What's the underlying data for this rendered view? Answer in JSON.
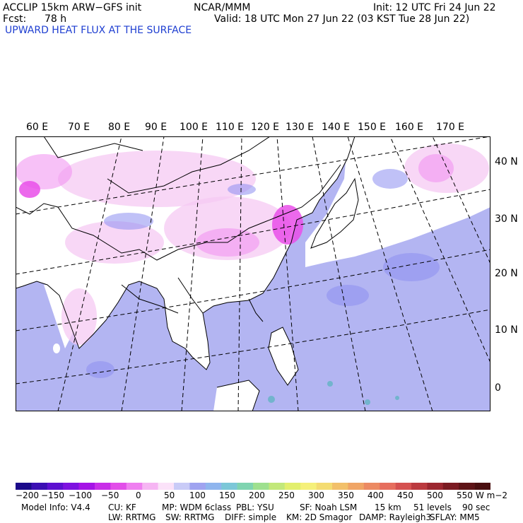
{
  "header": {
    "model": "ACCLIP 15km ARW−GFS init",
    "fcst_label": "Fcst:",
    "fcst_value": "78 h",
    "center": "NCAR/MMM",
    "init": "Init: 12 UTC Fri 24 Jun 22",
    "valid": "Valid: 18 UTC Mon 27 Jun 22 (03 KST Tue 28 Jun 22)",
    "field_title": "UPWARD HEAT FLUX AT THE SURFACE"
  },
  "map": {
    "lon_labels": [
      "60 E",
      "70 E",
      "80 E",
      "90 E",
      "100 E",
      "110 E",
      "120 E",
      "130 E",
      "140 E",
      "150 E",
      "160 E",
      "170 E"
    ],
    "lat_labels": [
      "40 N",
      "30 N",
      "20 N",
      "10 N",
      "0"
    ],
    "colors": {
      "ocean": "#b3b5f2",
      "land": "#ffffff",
      "pink_light": "#f6c9f3",
      "pink_mid": "#f08ef0",
      "magenta": "#e94fe9",
      "blue_mid": "#8c8ef0",
      "teal": "#6ab4c9",
      "coast": "#000000"
    }
  },
  "colorbar": {
    "tick_labels": [
      "−200",
      "−150",
      "−100",
      "−50",
      "0",
      "50",
      "100",
      "150",
      "200",
      "250",
      "300",
      "350",
      "400",
      "450",
      "500",
      "550"
    ],
    "unit": "W m−2",
    "colors": [
      "#1b0a8a",
      "#3b0fb3",
      "#5d10d0",
      "#7e12e0",
      "#a513e6",
      "#c82ee8",
      "#e24ee9",
      "#ef7ff0",
      "#f6b5f3",
      "#fbe2f9",
      "#c9cbf7",
      "#9fa3f0",
      "#8fb5ee",
      "#7cc7d8",
      "#7fd4b0",
      "#9ee08f",
      "#c2e87a",
      "#e2ef6d",
      "#f5f07a",
      "#f4dc72",
      "#f2c06a",
      "#f0a566",
      "#ec8a63",
      "#e66e5e",
      "#d55150",
      "#bb3a3f",
      "#9c2730",
      "#7b1b22",
      "#5e1417",
      "#4a0f10"
    ]
  },
  "footer": {
    "model_info": "Model Info: V4.4",
    "cu": "CU: KF",
    "mp": "MP: WDM 6class",
    "pbl": "PBL: YSU",
    "sf": "SF: Noah LSM",
    "res": "15 km",
    "levels": "51 levels",
    "dt": "90 sec",
    "lw": "LW: RRTMG",
    "sw": "SW: RRTMG",
    "diff": "DIFF: simple",
    "km": "KM: 2D Smagor",
    "damp": "DAMP: Rayleigh3",
    "sflay": "SFLAY: MM5"
  }
}
